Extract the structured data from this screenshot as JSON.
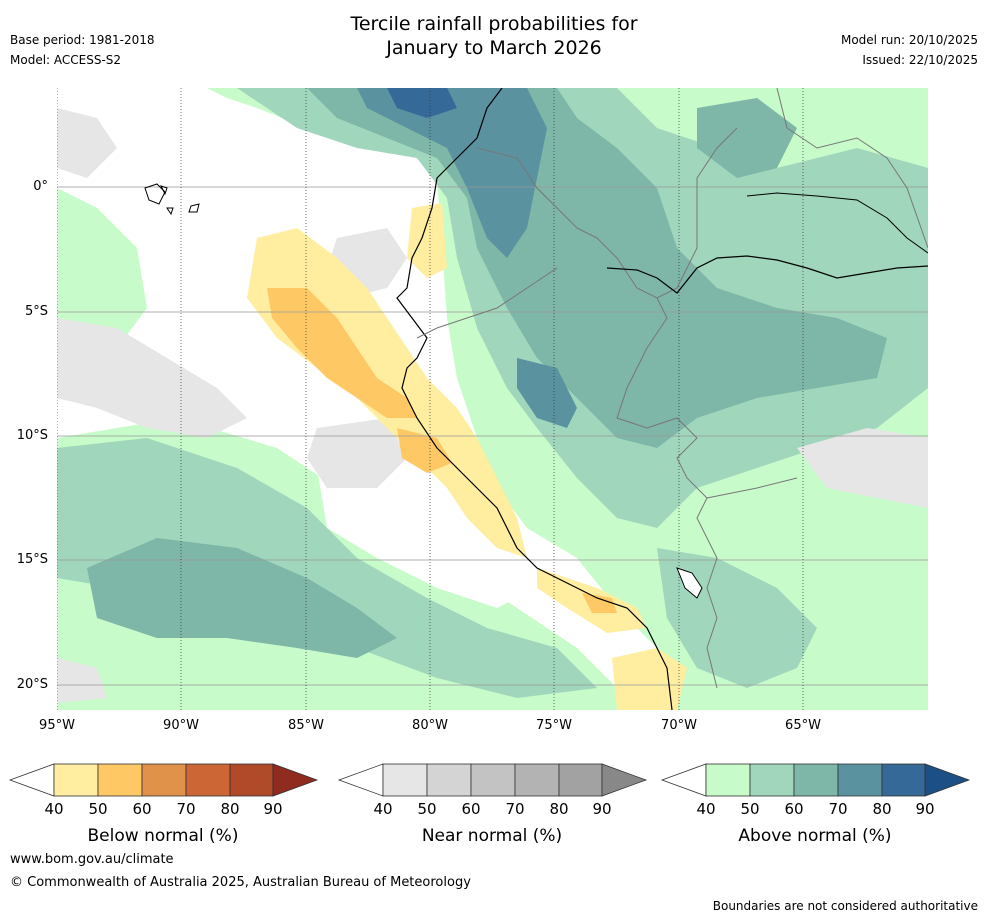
{
  "header": {
    "title_line1": "Tercile rainfall probabilities for",
    "title_line2": "January to March 2026",
    "base_period": "Base period: 1981-2018",
    "model": "Model: ACCESS-S2",
    "model_run": "Model run: 20/10/2025",
    "issued": "Issued: 22/10/2025"
  },
  "axes": {
    "lat_labels": [
      "0°",
      "5°S",
      "10°S",
      "15°S",
      "20°S"
    ],
    "lon_labels": [
      "95°W",
      "90°W",
      "85°W",
      "80°W",
      "75°W",
      "70°W",
      "65°W"
    ]
  },
  "legends": {
    "below": {
      "title": "Below normal (%)",
      "ticks": [
        "40",
        "50",
        "60",
        "70",
        "80",
        "90"
      ],
      "colors": [
        "#ffffff",
        "#ffeda0",
        "#fec965",
        "#e0914a",
        "#cc6634",
        "#b04a28",
        "#8f2c1f"
      ]
    },
    "near": {
      "title": "Near normal (%)",
      "ticks": [
        "40",
        "50",
        "60",
        "70",
        "80",
        "90"
      ],
      "colors": [
        "#ffffff",
        "#e6e6e6",
        "#d4d4d4",
        "#c3c3c3",
        "#b3b3b3",
        "#a2a2a2",
        "#888888"
      ]
    },
    "above": {
      "title": "Above normal (%)",
      "ticks": [
        "40",
        "50",
        "60",
        "70",
        "80",
        "90"
      ],
      "colors": [
        "#ffffff",
        "#c7fbc9",
        "#a0d6bb",
        "#7eb6a8",
        "#5a92a0",
        "#346998",
        "#1b4f86"
      ]
    }
  },
  "footer": {
    "website": "www.bom.gov.au/climate",
    "copyright": "© Commonwealth of Australia 2025, Australian Bureau of Meteorology",
    "disclaimer": "Boundaries are not considered authoritative"
  }
}
